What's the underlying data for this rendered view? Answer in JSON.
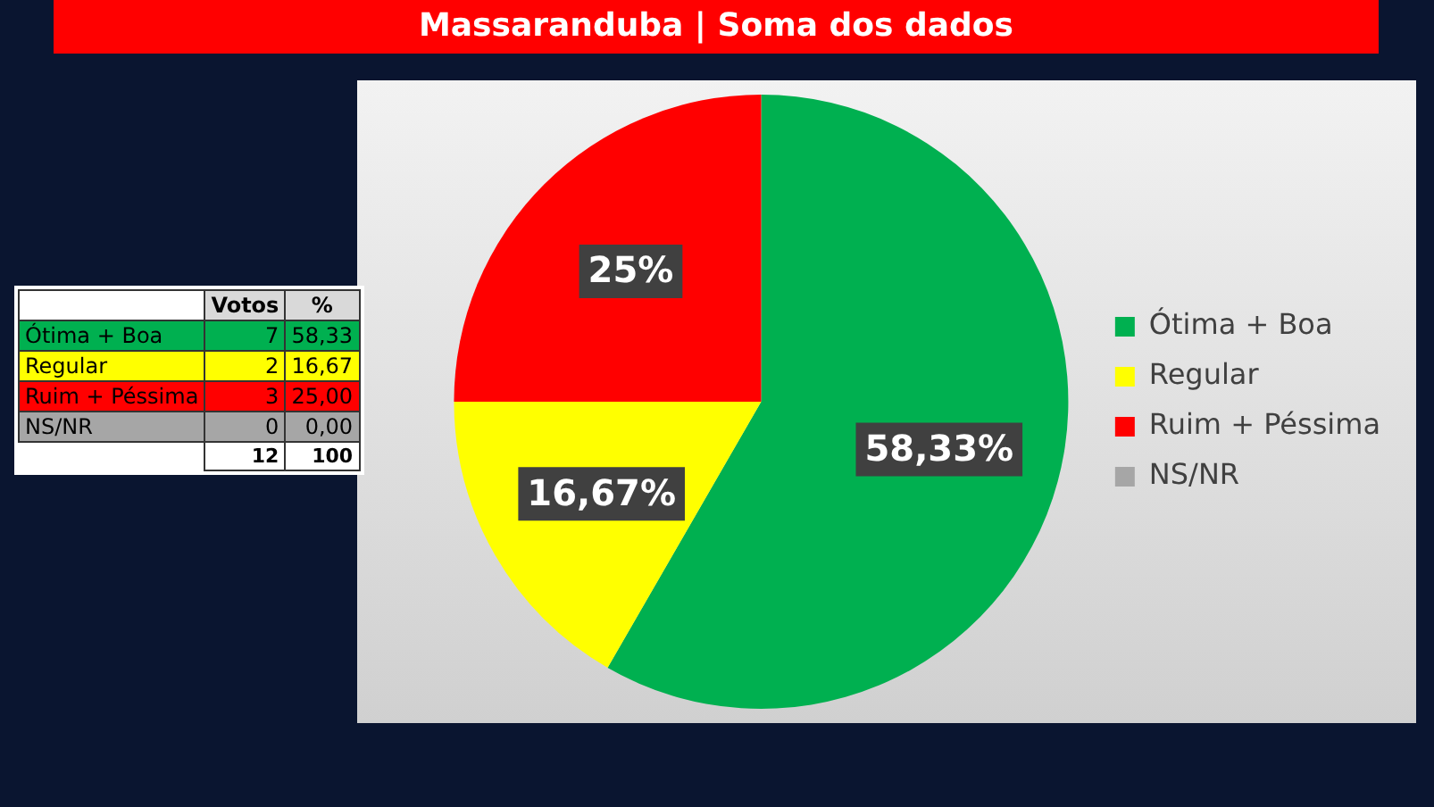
{
  "chart_data": [
    {
      "type": "other",
      "categories": [
        "Ótima + Boa",
        "Regular",
        "Ruim + Péssima",
        "NS/NR"
      ],
      "series": [
        {
          "name": "Votos",
          "values": [
            7,
            2,
            3,
            0
          ],
          "colors": [
            "#00b050",
            "#ffff00",
            "#ff0000",
            "#a6a6a6"
          ]
        },
        {
          "name": "%",
          "values": [
            58.33,
            16.67,
            25,
            0
          ],
          "colors": [
            "#00b050",
            "#ffff00",
            "#ff0000",
            "#a6a6a6"
          ],
          "value_labels": [
            "58,33",
            "16,67",
            "25,00",
            "0,00"
          ]
        }
      ],
      "data_labels": true,
      "totals": [
        "12",
        "100"
      ]
    },
    {
      "type": "pie",
      "title": "Massaranduba | Soma dos dados",
      "categories": [
        "Ótima + Boa",
        "Regular",
        "Ruim + Péssima",
        "NS/NR"
      ],
      "values": [
        58.33,
        16.67,
        25,
        0
      ],
      "colors": [
        "#00b050",
        "#ffff00",
        "#ff0000",
        "#a6a6a6"
      ],
      "value_labels": [
        "58,33%",
        "16,67%",
        "25%",
        null
      ],
      "legend": "right"
    }
  ]
}
